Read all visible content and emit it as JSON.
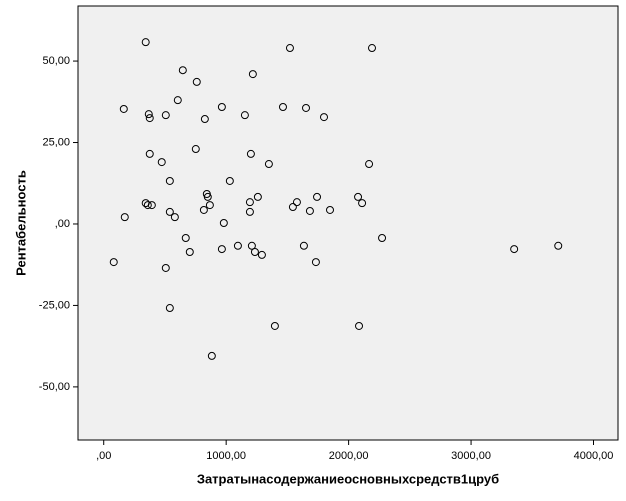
{
  "chart_data": {
    "type": "scatter",
    "xlabel": "Затратынасодержаниеосновныхсредств1цруб",
    "ylabel": "Рентабельность",
    "x": [
      343,
      1521,
      2191,
      646,
      760,
      1218,
      164,
      368,
      376,
      507,
      605,
      965,
      826,
      1153,
      1464,
      1652,
      1799,
      752,
      376,
      474,
      1202,
      1349,
      2167,
      540,
      1030,
      842,
      850,
      1259,
      1742,
      2077,
      2110,
      1194,
      1578,
      343,
      360,
      393,
      867,
      1545,
      818,
      1194,
      540,
      1684,
      1848,
      172,
      581,
      981,
      670,
      2273,
      1096,
      1210,
      1635,
      3712,
      3352,
      965,
      703,
      1235,
      1292,
      82,
      1733,
      507,
      540,
      1398,
      2085,
      883
    ],
    "values": [
      55.8,
      54,
      54,
      47.2,
      43.6,
      46,
      35.3,
      33.7,
      32.5,
      33.4,
      38,
      35.9,
      32.2,
      33.4,
      35.9,
      35.6,
      32.8,
      23,
      21.5,
      19,
      21.5,
      18.4,
      18.4,
      13.2,
      13.2,
      9.2,
      8.3,
      8.3,
      8.3,
      8.3,
      6.4,
      6.7,
      6.7,
      6.4,
      5.8,
      5.8,
      5.8,
      5.2,
      4.3,
      3.7,
      3.7,
      4,
      4.3,
      2.1,
      2.1,
      0.3,
      -4.3,
      -4.3,
      -6.7,
      -6.7,
      -6.7,
      -6.7,
      -7.7,
      -7.7,
      -8.6,
      -8.6,
      -9.5,
      -11.7,
      -11.7,
      -13.5,
      -25.8,
      -31.3,
      -31.3,
      -40.5
    ],
    "xlim": [
      -210,
      4200
    ],
    "ylim": [
      -66.3,
      66.9
    ],
    "xticks": [
      {
        "value": 0,
        "label": ",00"
      },
      {
        "value": 1000,
        "label": "1000,00"
      },
      {
        "value": 2000,
        "label": "2000,00"
      },
      {
        "value": 3000,
        "label": "3000,00"
      },
      {
        "value": 4000,
        "label": "4000,00"
      }
    ],
    "yticks": [
      {
        "value": -50,
        "label": "-50,00"
      },
      {
        "value": -25,
        "label": "-25,00"
      },
      {
        "value": 0,
        "label": ",00"
      },
      {
        "value": 25,
        "label": "25,00"
      },
      {
        "value": 50,
        "label": "50,00"
      }
    ],
    "color": "#000000"
  }
}
